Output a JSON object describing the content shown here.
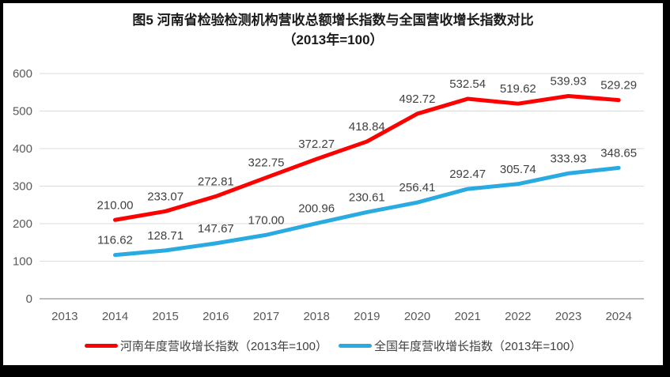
{
  "figure": {
    "title_line1": "图5  河南省检验检测机构营收总额增长指数与全国营收增长指数对比",
    "title_line2": "（2013年=100）"
  },
  "chart_data": {
    "type": "line",
    "title": "图5 河南省检验检测机构营收总额增长指数与全国营收增长指数对比（2013年=100）",
    "categories": [
      "2013",
      "2014",
      "2015",
      "2016",
      "2017",
      "2018",
      "2019",
      "2020",
      "2021",
      "2022",
      "2023",
      "2024"
    ],
    "series": [
      {
        "name": "河南年度营收增长指数（2013年=100）",
        "color": "#FF0000",
        "values": [
          null,
          210.0,
          233.07,
          272.81,
          322.75,
          372.27,
          418.84,
          492.72,
          532.54,
          519.62,
          539.93,
          529.29
        ]
      },
      {
        "name": "全国年度营收增长指数（2013年=100）",
        "color": "#29ABE2",
        "values": [
          null,
          116.62,
          128.71,
          147.67,
          170.0,
          200.96,
          230.61,
          256.41,
          292.47,
          305.74,
          333.93,
          348.65
        ]
      }
    ],
    "xlabel": "",
    "ylabel": "",
    "ylim": [
      0,
      600
    ],
    "ytick_step": 100,
    "grid": true,
    "data_labels": true,
    "data_label_decimals": 2,
    "legend_position": "bottom",
    "colors": {
      "gridline": "#DCDCDC",
      "axis_line": "#A6A6A6",
      "tick_label": "#595959",
      "data_label": "#404040",
      "title": "#1A1A1A"
    }
  }
}
